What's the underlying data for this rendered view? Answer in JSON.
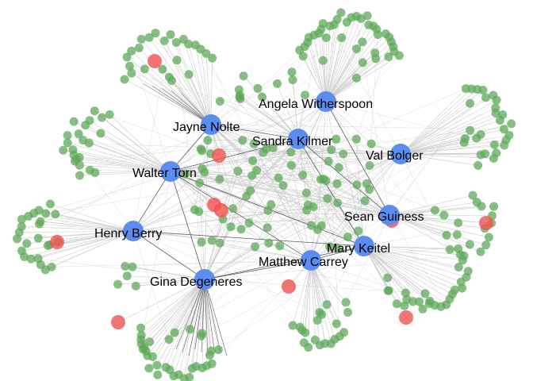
{
  "graph": {
    "colors": {
      "background": "#ffffff",
      "hub": "#5b8def",
      "leaf": "#5fa85a",
      "highlight": "#ef5350",
      "edge_light": "#c8c8c8",
      "edge_dark": "#3a3a3a"
    },
    "hubs": [
      {
        "id": "jayne",
        "label": "Jayne Nolte"
      },
      {
        "id": "angela",
        "label": "Angela Witherspoon"
      },
      {
        "id": "sandra",
        "label": "Sandra Kilmer"
      },
      {
        "id": "val",
        "label": "Val Bolger"
      },
      {
        "id": "walter",
        "label": "Walter Torn"
      },
      {
        "id": "sean",
        "label": "Sean Guiness"
      },
      {
        "id": "henry",
        "label": "Henry Berry"
      },
      {
        "id": "mary",
        "label": "Mary Keitel"
      },
      {
        "id": "matthew",
        "label": "Matthew Carrey"
      },
      {
        "id": "gina",
        "label": "Gina Degeneres"
      }
    ]
  }
}
